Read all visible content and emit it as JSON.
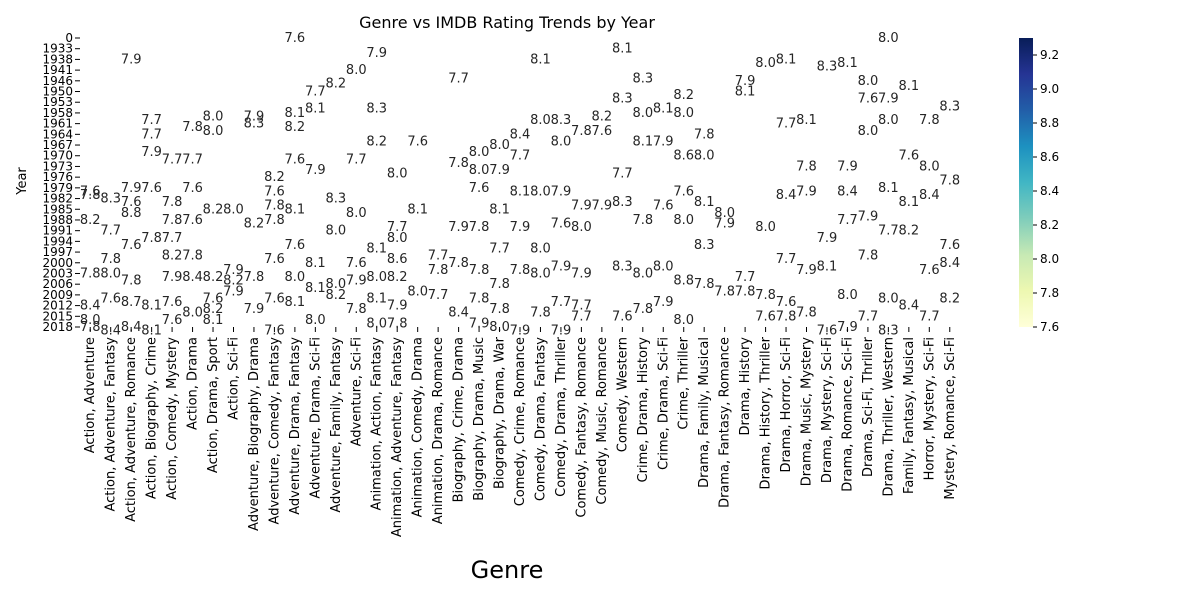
{
  "chart_data": {
    "type": "heatmap",
    "title": "Genre vs IMDB Rating Trends by Year",
    "xlabel": "Genre",
    "ylabel": "Year",
    "x_categories": [
      "Action, Adventure",
      "Action, Adventure, Fantasy",
      "Action, Adventure, Romance",
      "Action, Biography, Crime",
      "Action, Comedy, Mystery",
      "Action, Drama",
      "Action, Drama, Sport",
      "Action, Sci-Fi",
      "Adventure, Biography, Drama",
      "Adventure, Comedy, Fantasy",
      "Adventure, Drama, Fantasy",
      "Adventure, Drama, Sci-Fi",
      "Adventure, Family, Fantasy",
      "Adventure, Sci-Fi",
      "Animation, Action, Fantasy",
      "Animation, Adventure, Fantasy",
      "Animation, Comedy, Drama",
      "Animation, Drama, Romance",
      "Biography, Crime, Drama",
      "Biography, Drama, Music",
      "Biography, Drama, War",
      "Comedy, Crime, Romance",
      "Comedy, Drama, Fantasy",
      "Comedy, Drama, Thriller",
      "Comedy, Fantasy, Romance",
      "Comedy, Music, Romance",
      "Comedy, Western",
      "Crime, Drama, History",
      "Crime, Drama, Sci-Fi",
      "Crime, Thriller",
      "Drama, Family, Musical",
      "Drama, Fantasy, Romance",
      "Drama, History",
      "Drama, History, Thriller",
      "Drama, Horror, Sci-Fi",
      "Drama, Music, Mystery",
      "Drama, Mystery, Sci-Fi",
      "Drama, Romance, Sci-Fi",
      "Drama, Sci-Fi, Thriller",
      "Drama, Thriller, Western",
      "Family, Fantasy, Musical",
      "Horror, Mystery, Sci-Fi",
      "Mystery, Romance, Sci-Fi"
    ],
    "y_tick_labels": [
      "0",
      "1933",
      "1938",
      "1941",
      "1946",
      "1950",
      "1953",
      "1958",
      "1961",
      "1964",
      "1967",
      "1970",
      "1973",
      "1976",
      "1979",
      "1982",
      "1985",
      "1988",
      "1991",
      "1994",
      "1997",
      "2000",
      "2003",
      "2006",
      "2009",
      "2012",
      "2015",
      "2018"
    ],
    "colorbar": {
      "colormap": "YlGnBu",
      "min": 7.6,
      "max": 9.3,
      "ticks": [
        "7.6",
        "7.8",
        "8.0",
        "8.2",
        "8.4",
        "8.6",
        "8.8",
        "9.0",
        "9.2"
      ]
    },
    "cell_labels": [
      {
        "g": 0,
        "y": 1988,
        "v": "8.2"
      },
      {
        "g": 0,
        "y": 1981,
        "v": "7.8"
      },
      {
        "g": 0,
        "y": 1980,
        "v": "7.6"
      },
      {
        "g": 0,
        "y": 2003,
        "v": "7.8"
      },
      {
        "g": 0,
        "y": 2012,
        "v": "8.4"
      },
      {
        "g": 0,
        "y": 2016,
        "v": "8.0"
      },
      {
        "g": 0,
        "y": 2018,
        "v": "7.8"
      },
      {
        "g": 1,
        "y": 1991,
        "v": "7.7"
      },
      {
        "g": 1,
        "y": 1999,
        "v": "7.8"
      },
      {
        "g": 1,
        "y": 2003,
        "v": "8.0"
      },
      {
        "g": 1,
        "y": 1982,
        "v": "8.3"
      },
      {
        "g": 1,
        "y": 2010,
        "v": "7.6"
      },
      {
        "g": 1,
        "y": 2019,
        "v": "8.4"
      },
      {
        "g": 2,
        "y": 1938,
        "v": "7.9"
      },
      {
        "g": 2,
        "y": 1979,
        "v": "7.9"
      },
      {
        "g": 2,
        "y": 1983,
        "v": "7.6"
      },
      {
        "g": 2,
        "y": 1986,
        "v": "8.8"
      },
      {
        "g": 2,
        "y": 1995,
        "v": "7.6"
      },
      {
        "g": 2,
        "y": 2005,
        "v": "7.8"
      },
      {
        "g": 2,
        "y": 2011,
        "v": "8.7"
      },
      {
        "g": 2,
        "y": 2018,
        "v": "8.4"
      },
      {
        "g": 3,
        "y": 1960,
        "v": "7.7"
      },
      {
        "g": 3,
        "y": 1964,
        "v": "7.7"
      },
      {
        "g": 3,
        "y": 1969,
        "v": "7.9"
      },
      {
        "g": 3,
        "y": 1979,
        "v": "7.6"
      },
      {
        "g": 3,
        "y": 1993,
        "v": "7.8"
      },
      {
        "g": 3,
        "y": 2012,
        "v": "8.1"
      },
      {
        "g": 3,
        "y": 2019,
        "v": "8.1"
      },
      {
        "g": 4,
        "y": 1971,
        "v": "7.7"
      },
      {
        "g": 4,
        "y": 1983,
        "v": "7.8"
      },
      {
        "g": 4,
        "y": 1988,
        "v": "7.8"
      },
      {
        "g": 4,
        "y": 1993,
        "v": "7.7"
      },
      {
        "g": 4,
        "y": 1998,
        "v": "8.2"
      },
      {
        "g": 4,
        "y": 2004,
        "v": "7.9"
      },
      {
        "g": 4,
        "y": 2011,
        "v": "7.6"
      },
      {
        "g": 4,
        "y": 2016,
        "v": "7.6"
      },
      {
        "g": 5,
        "y": 1962,
        "v": "7.8"
      },
      {
        "g": 5,
        "y": 1971,
        "v": "7.7"
      },
      {
        "g": 5,
        "y": 1979,
        "v": "7.6"
      },
      {
        "g": 5,
        "y": 1988,
        "v": "7.6"
      },
      {
        "g": 5,
        "y": 1998,
        "v": "7.8"
      },
      {
        "g": 5,
        "y": 2004,
        "v": "8.4"
      },
      {
        "g": 5,
        "y": 2014,
        "v": "8.0"
      },
      {
        "g": 6,
        "y": 1959,
        "v": "8.0"
      },
      {
        "g": 6,
        "y": 1963,
        "v": "8.0"
      },
      {
        "g": 6,
        "y": 1985,
        "v": "8.2"
      },
      {
        "g": 6,
        "y": 2004,
        "v": "8.2"
      },
      {
        "g": 6,
        "y": 2010,
        "v": "7.6"
      },
      {
        "g": 6,
        "y": 2013,
        "v": "8.2"
      },
      {
        "g": 6,
        "y": 2016,
        "v": "8.1"
      },
      {
        "g": 7,
        "y": 1985,
        "v": "8.0"
      },
      {
        "g": 7,
        "y": 2002,
        "v": "7.9"
      },
      {
        "g": 7,
        "y": 2005,
        "v": "8.2"
      },
      {
        "g": 7,
        "y": 2008,
        "v": "7.9"
      },
      {
        "g": 8,
        "y": 1959,
        "v": "7.9"
      },
      {
        "g": 8,
        "y": 1961,
        "v": "8.3"
      },
      {
        "g": 8,
        "y": 1989,
        "v": "8.2"
      },
      {
        "g": 8,
        "y": 2004,
        "v": "7.8"
      },
      {
        "g": 8,
        "y": 2013,
        "v": "7.9"
      },
      {
        "g": 9,
        "y": 1976,
        "v": "8.2"
      },
      {
        "g": 9,
        "y": 1980,
        "v": "7.6"
      },
      {
        "g": 9,
        "y": 1984,
        "v": "7.8"
      },
      {
        "g": 9,
        "y": 1988,
        "v": "7.8"
      },
      {
        "g": 9,
        "y": 1999,
        "v": "7.6"
      },
      {
        "g": 9,
        "y": 2010,
        "v": "7.6"
      },
      {
        "g": 9,
        "y": 2019,
        "v": "7.6"
      },
      {
        "g": 10,
        "y": 0,
        "v": "7.6"
      },
      {
        "g": 10,
        "y": 1958,
        "v": "8.1"
      },
      {
        "g": 10,
        "y": 1962,
        "v": "8.2"
      },
      {
        "g": 10,
        "y": 1971,
        "v": "7.6"
      },
      {
        "g": 10,
        "y": 1985,
        "v": "8.1"
      },
      {
        "g": 10,
        "y": 1995,
        "v": "7.6"
      },
      {
        "g": 10,
        "y": 2004,
        "v": "8.0"
      },
      {
        "g": 10,
        "y": 2011,
        "v": "8.1"
      },
      {
        "g": 11,
        "y": 1950,
        "v": "7.7"
      },
      {
        "g": 11,
        "y": 1956,
        "v": "8.1"
      },
      {
        "g": 11,
        "y": 1974,
        "v": "7.9"
      },
      {
        "g": 11,
        "y": 2000,
        "v": "8.1"
      },
      {
        "g": 11,
        "y": 2007,
        "v": "8.1"
      },
      {
        "g": 11,
        "y": 2016,
        "v": "8.0"
      },
      {
        "g": 12,
        "y": 1947,
        "v": "8.2"
      },
      {
        "g": 12,
        "y": 1982,
        "v": "8.3"
      },
      {
        "g": 12,
        "y": 1991,
        "v": "8.0"
      },
      {
        "g": 12,
        "y": 2006,
        "v": "8.0"
      },
      {
        "g": 12,
        "y": 2009,
        "v": "8.2"
      },
      {
        "g": 13,
        "y": 1941,
        "v": "8.0"
      },
      {
        "g": 13,
        "y": 1971,
        "v": "7.7"
      },
      {
        "g": 13,
        "y": 1986,
        "v": "8.0"
      },
      {
        "g": 13,
        "y": 2000,
        "v": "7.6"
      },
      {
        "g": 13,
        "y": 2005,
        "v": "7.9"
      },
      {
        "g": 13,
        "y": 2013,
        "v": "7.8"
      },
      {
        "g": 14,
        "y": 1935,
        "v": "7.9"
      },
      {
        "g": 14,
        "y": 1956,
        "v": "8.3"
      },
      {
        "g": 14,
        "y": 1966,
        "v": "8.2"
      },
      {
        "g": 14,
        "y": 1996,
        "v": "8.1"
      },
      {
        "g": 14,
        "y": 2004,
        "v": "8.0"
      },
      {
        "g": 14,
        "y": 2010,
        "v": "8.1"
      },
      {
        "g": 14,
        "y": 2017,
        "v": "8.0"
      },
      {
        "g": 15,
        "y": 1975,
        "v": "8.0"
      },
      {
        "g": 15,
        "y": 1990,
        "v": "7.7"
      },
      {
        "g": 15,
        "y": 1993,
        "v": "8.0"
      },
      {
        "g": 15,
        "y": 1999,
        "v": "8.6"
      },
      {
        "g": 15,
        "y": 2004,
        "v": "8.2"
      },
      {
        "g": 15,
        "y": 2012,
        "v": "7.9"
      },
      {
        "g": 15,
        "y": 2017,
        "v": "7.8"
      },
      {
        "g": 16,
        "y": 1966,
        "v": "7.6"
      },
      {
        "g": 16,
        "y": 1985,
        "v": "8.1"
      },
      {
        "g": 16,
        "y": 2008,
        "v": "8.0"
      },
      {
        "g": 17,
        "y": 1998,
        "v": "7.7"
      },
      {
        "g": 17,
        "y": 2002,
        "v": "7.8"
      },
      {
        "g": 17,
        "y": 2009,
        "v": "7.7"
      },
      {
        "g": 18,
        "y": 1945,
        "v": "7.7"
      },
      {
        "g": 18,
        "y": 1972,
        "v": "7.8"
      },
      {
        "g": 18,
        "y": 1990,
        "v": "7.9"
      },
      {
        "g": 18,
        "y": 2000,
        "v": "7.8"
      },
      {
        "g": 18,
        "y": 2014,
        "v": "8.4"
      },
      {
        "g": 19,
        "y": 1969,
        "v": "8.0"
      },
      {
        "g": 19,
        "y": 1974,
        "v": "8.0"
      },
      {
        "g": 19,
        "y": 1979,
        "v": "7.6"
      },
      {
        "g": 19,
        "y": 1990,
        "v": "7.8"
      },
      {
        "g": 19,
        "y": 2002,
        "v": "7.8"
      },
      {
        "g": 19,
        "y": 2010,
        "v": "7.8"
      },
      {
        "g": 19,
        "y": 2017,
        "v": "7.9"
      },
      {
        "g": 20,
        "y": 1967,
        "v": "8.0"
      },
      {
        "g": 20,
        "y": 1974,
        "v": "7.9"
      },
      {
        "g": 20,
        "y": 1985,
        "v": "8.1"
      },
      {
        "g": 20,
        "y": 1996,
        "v": "7.7"
      },
      {
        "g": 20,
        "y": 2006,
        "v": "7.8"
      },
      {
        "g": 20,
        "y": 2013,
        "v": "7.8"
      },
      {
        "g": 20,
        "y": 2018,
        "v": "8.0"
      },
      {
        "g": 21,
        "y": 1964,
        "v": "8.4"
      },
      {
        "g": 21,
        "y": 1970,
        "v": "7.7"
      },
      {
        "g": 21,
        "y": 1980,
        "v": "8.1"
      },
      {
        "g": 21,
        "y": 1990,
        "v": "7.9"
      },
      {
        "g": 21,
        "y": 2002,
        "v": "7.8"
      },
      {
        "g": 21,
        "y": 2019,
        "v": "7.9"
      },
      {
        "g": 22,
        "y": 1938,
        "v": "8.1"
      },
      {
        "g": 22,
        "y": 1960,
        "v": "8.0"
      },
      {
        "g": 22,
        "y": 1980,
        "v": "8.0"
      },
      {
        "g": 22,
        "y": 1996,
        "v": "8.0"
      },
      {
        "g": 22,
        "y": 2003,
        "v": "8.0"
      },
      {
        "g": 22,
        "y": 2014,
        "v": "7.8"
      },
      {
        "g": 23,
        "y": 1960,
        "v": "8.3"
      },
      {
        "g": 23,
        "y": 1966,
        "v": "8.0"
      },
      {
        "g": 23,
        "y": 1980,
        "v": "7.9"
      },
      {
        "g": 23,
        "y": 1989,
        "v": "7.6"
      },
      {
        "g": 23,
        "y": 2001,
        "v": "7.9"
      },
      {
        "g": 23,
        "y": 2011,
        "v": "7.7"
      },
      {
        "g": 23,
        "y": 2019,
        "v": "7.9"
      },
      {
        "g": 24,
        "y": 1963,
        "v": "7.8"
      },
      {
        "g": 24,
        "y": 1984,
        "v": "7.9"
      },
      {
        "g": 24,
        "y": 1990,
        "v": "8.0"
      },
      {
        "g": 24,
        "y": 2003,
        "v": "7.9"
      },
      {
        "g": 24,
        "y": 2012,
        "v": "7.7"
      },
      {
        "g": 24,
        "y": 2015,
        "v": "7.7"
      },
      {
        "g": 25,
        "y": 1963,
        "v": "7.6"
      },
      {
        "g": 25,
        "y": 1984,
        "v": "7.9"
      },
      {
        "g": 25,
        "y": 1959,
        "v": "8.2"
      },
      {
        "g": 26,
        "y": 1933,
        "v": "8.1"
      },
      {
        "g": 26,
        "y": 1952,
        "v": "8.3"
      },
      {
        "g": 26,
        "y": 1975,
        "v": "7.7"
      },
      {
        "g": 26,
        "y": 1983,
        "v": "8.3"
      },
      {
        "g": 26,
        "y": 2001,
        "v": "8.3"
      },
      {
        "g": 26,
        "y": 2015,
        "v": "7.6"
      },
      {
        "g": 27,
        "y": 1945,
        "v": "8.3"
      },
      {
        "g": 27,
        "y": 1958,
        "v": "8.0"
      },
      {
        "g": 27,
        "y": 1966,
        "v": "8.1"
      },
      {
        "g": 27,
        "y": 1988,
        "v": "7.8"
      },
      {
        "g": 27,
        "y": 2003,
        "v": "8.0"
      },
      {
        "g": 27,
        "y": 2013,
        "v": "7.8"
      },
      {
        "g": 28,
        "y": 1956,
        "v": "8.1"
      },
      {
        "g": 28,
        "y": 1966,
        "v": "7.9"
      },
      {
        "g": 28,
        "y": 1984,
        "v": "7.6"
      },
      {
        "g": 28,
        "y": 2001,
        "v": "8.0"
      },
      {
        "g": 28,
        "y": 2011,
        "v": "7.9"
      },
      {
        "g": 29,
        "y": 1951,
        "v": "8.2"
      },
      {
        "g": 29,
        "y": 1958,
        "v": "8.0"
      },
      {
        "g": 29,
        "y": 1970,
        "v": "8.6"
      },
      {
        "g": 29,
        "y": 1980,
        "v": "7.6"
      },
      {
        "g": 29,
        "y": 1988,
        "v": "8.0"
      },
      {
        "g": 29,
        "y": 2005,
        "v": "8.8"
      },
      {
        "g": 29,
        "y": 2016,
        "v": "8.0"
      },
      {
        "g": 30,
        "y": 1964,
        "v": "7.8"
      },
      {
        "g": 30,
        "y": 1970,
        "v": "8.0"
      },
      {
        "g": 30,
        "y": 1983,
        "v": "8.1"
      },
      {
        "g": 30,
        "y": 1995,
        "v": "8.3"
      },
      {
        "g": 30,
        "y": 2006,
        "v": "7.8"
      },
      {
        "g": 31,
        "y": 1986,
        "v": "8.0"
      },
      {
        "g": 31,
        "y": 1989,
        "v": "7.9"
      },
      {
        "g": 31,
        "y": 2008,
        "v": "7.8"
      },
      {
        "g": 32,
        "y": 1946,
        "v": "7.9"
      },
      {
        "g": 32,
        "y": 1950,
        "v": "8.1"
      },
      {
        "g": 32,
        "y": 2004,
        "v": "7.7"
      },
      {
        "g": 32,
        "y": 2008,
        "v": "7.8"
      },
      {
        "g": 33,
        "y": 1939,
        "v": "8.0"
      },
      {
        "g": 33,
        "y": 1990,
        "v": "8.0"
      },
      {
        "g": 33,
        "y": 2009,
        "v": "7.8"
      },
      {
        "g": 33,
        "y": 2015,
        "v": "7.6"
      },
      {
        "g": 34,
        "y": 1938,
        "v": "8.1"
      },
      {
        "g": 34,
        "y": 1961,
        "v": "7.7"
      },
      {
        "g": 34,
        "y": 1981,
        "v": "8.4"
      },
      {
        "g": 34,
        "y": 1999,
        "v": "7.7"
      },
      {
        "g": 34,
        "y": 2011,
        "v": "7.6"
      },
      {
        "g": 34,
        "y": 2015,
        "v": "7.8"
      },
      {
        "g": 35,
        "y": 1960,
        "v": "8.1"
      },
      {
        "g": 35,
        "y": 1973,
        "v": "7.8"
      },
      {
        "g": 35,
        "y": 1980,
        "v": "7.9"
      },
      {
        "g": 35,
        "y": 2002,
        "v": "7.9"
      },
      {
        "g": 35,
        "y": 2014,
        "v": "7.8"
      },
      {
        "g": 36,
        "y": 1940,
        "v": "8.3"
      },
      {
        "g": 36,
        "y": 1993,
        "v": "7.9"
      },
      {
        "g": 36,
        "y": 2001,
        "v": "8.1"
      },
      {
        "g": 36,
        "y": 2019,
        "v": "7.6"
      },
      {
        "g": 37,
        "y": 1939,
        "v": "8.1"
      },
      {
        "g": 37,
        "y": 1973,
        "v": "7.9"
      },
      {
        "g": 37,
        "y": 1980,
        "v": "8.4"
      },
      {
        "g": 37,
        "y": 1988,
        "v": "7.7"
      },
      {
        "g": 37,
        "y": 2009,
        "v": "8.0"
      },
      {
        "g": 37,
        "y": 2018,
        "v": "7.9"
      },
      {
        "g": 38,
        "y": 1946,
        "v": "8.0"
      },
      {
        "g": 38,
        "y": 1952,
        "v": "7.6"
      },
      {
        "g": 38,
        "y": 1963,
        "v": "8.0"
      },
      {
        "g": 38,
        "y": 1987,
        "v": "7.9"
      },
      {
        "g": 38,
        "y": 1998,
        "v": "7.8"
      },
      {
        "g": 38,
        "y": 2015,
        "v": "7.7"
      },
      {
        "g": 39,
        "y": 0,
        "v": "8.0"
      },
      {
        "g": 39,
        "y": 1952,
        "v": "7.9"
      },
      {
        "g": 39,
        "y": 1960,
        "v": "8.0"
      },
      {
        "g": 39,
        "y": 1979,
        "v": "8.1"
      },
      {
        "g": 39,
        "y": 1991,
        "v": "7.7"
      },
      {
        "g": 39,
        "y": 2010,
        "v": "8.0"
      },
      {
        "g": 39,
        "y": 2019,
        "v": "8.3"
      },
      {
        "g": 40,
        "y": 1948,
        "v": "8.1"
      },
      {
        "g": 40,
        "y": 1970,
        "v": "7.6"
      },
      {
        "g": 40,
        "y": 1983,
        "v": "8.1"
      },
      {
        "g": 40,
        "y": 1991,
        "v": "8.2"
      },
      {
        "g": 40,
        "y": 2012,
        "v": "8.4"
      },
      {
        "g": 41,
        "y": 1960,
        "v": "7.8"
      },
      {
        "g": 41,
        "y": 1973,
        "v": "8.0"
      },
      {
        "g": 41,
        "y": 1981,
        "v": "8.4"
      },
      {
        "g": 41,
        "y": 2002,
        "v": "7.6"
      },
      {
        "g": 41,
        "y": 2015,
        "v": "7.7"
      },
      {
        "g": 42,
        "y": 1955,
        "v": "8.3"
      },
      {
        "g": 42,
        "y": 1977,
        "v": "7.8"
      },
      {
        "g": 42,
        "y": 1995,
        "v": "7.6"
      },
      {
        "g": 42,
        "y": 2000,
        "v": "8.4"
      },
      {
        "g": 42,
        "y": 2010,
        "v": "8.2"
      }
    ]
  }
}
